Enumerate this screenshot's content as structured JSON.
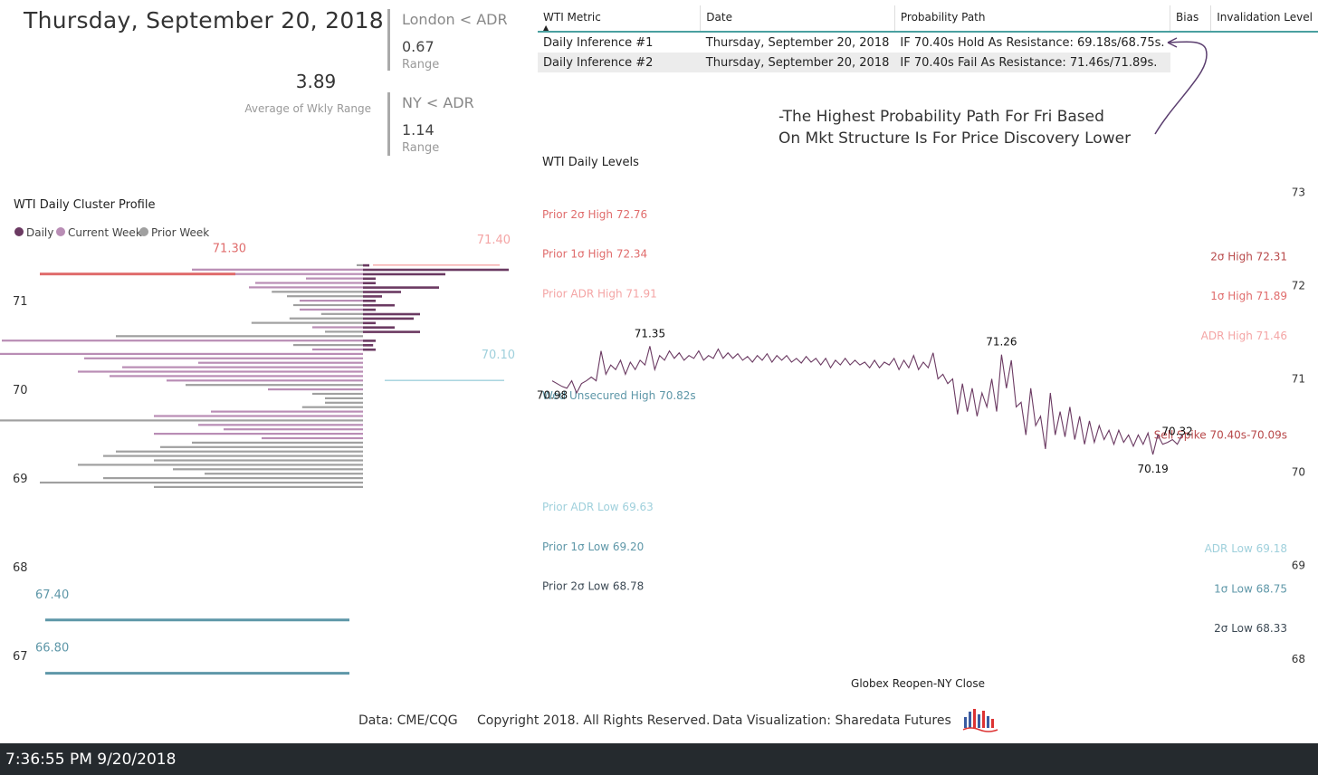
{
  "header": {
    "date_title": "Thursday, September 20, 2018",
    "avg_value": "3.89",
    "avg_label": "Average of Wkly Range"
  },
  "cards": [
    {
      "title": "London < ADR",
      "value": "0.67",
      "sub": "Range"
    },
    {
      "title": "NY < ADR",
      "value": "1.14",
      "sub": "Range"
    }
  ],
  "table": {
    "columns": [
      "WTI Metric",
      "Date",
      "Probability Path",
      "Bias",
      "Invalidation Level"
    ],
    "rows": [
      [
        "Daily Inference #1",
        "Thursday, September 20, 2018",
        "IF 70.40s Hold As Resistance: 69.18s/68.75s.",
        "",
        ""
      ],
      [
        "Daily Inference #2",
        "Thursday, September 20, 2018",
        "IF 70.40s Fail As Resistance: 71.46s/71.89s.",
        "",
        ""
      ]
    ]
  },
  "annotation": {
    "line1": "-The Highest Probability Path For Fri Based",
    "line2": "On Mkt Structure Is For Price Discovery Lower"
  },
  "colors": {
    "daily": "#6b3a62",
    "current_week": "#b98db5",
    "prior_week": "#a0a0a0",
    "red": "#e06c6c",
    "light_red": "#f4a5a5",
    "teal": "#5e97a8",
    "light_teal": "#9fd0dc",
    "dark_slate": "#3d4a55",
    "dark_red": "#b8494a",
    "line": "#6b3a62",
    "status_bar": "#252a2e"
  },
  "chart_data": [
    {
      "type": "bar",
      "title": "WTI Daily Cluster Profile",
      "orientation": "horizontal-profile",
      "legend": {
        "placement": "top-left",
        "items": [
          "Daily",
          "Current Week",
          "Prior Week"
        ]
      },
      "y_ticks": [
        "71",
        "70",
        "69",
        "68",
        "67"
      ],
      "ylim": [
        66.7,
        71.5
      ],
      "price_step": 0.05,
      "price_start": 71.4,
      "left_profile": [
        0.005,
        0.135,
        0.118,
        0.045,
        0.085,
        0.09,
        0.072,
        0.06,
        0.05,
        0.055,
        0.05,
        0.033,
        0.058,
        0.088,
        0.04,
        0.03,
        0.195,
        0.285,
        0.055,
        0.04,
        0.3,
        0.22,
        0.13,
        0.19,
        0.225,
        0.2,
        0.155,
        0.14,
        0.075,
        0.04,
        0.03,
        0.03,
        0.048,
        0.12,
        0.165,
        0.295,
        0.13,
        0.11,
        0.165,
        0.08,
        0.135,
        0.16,
        0.195,
        0.205,
        0.165,
        0.225,
        0.15,
        0.125,
        0.205,
        0.255,
        0.165
      ],
      "left_series": [
        "prior",
        "current",
        "current",
        "current",
        "current",
        "current",
        "prior",
        "prior",
        "current",
        "prior",
        "current",
        "prior",
        "prior",
        "prior",
        "current",
        "prior",
        "prior",
        "current",
        "prior",
        "current",
        "current",
        "current",
        "current",
        "current",
        "current",
        "current",
        "current",
        "prior",
        "current",
        "prior",
        "prior",
        "prior",
        "prior",
        "current",
        "current",
        "prior",
        "current",
        "current",
        "current",
        "current",
        "prior",
        "prior",
        "prior",
        "prior",
        "prior",
        "prior",
        "prior",
        "prior",
        "prior",
        "prior",
        "prior"
      ],
      "right_profile": [
        0.005,
        0.115,
        0.065,
        0.01,
        0.01,
        0.06,
        0.03,
        0.015,
        0.01,
        0.025,
        0.01,
        0.045,
        0.04,
        0.01,
        0.025,
        0.045,
        0.0,
        0.01,
        0.008,
        0.01,
        0.0,
        0.0,
        0.0,
        0.0,
        0.0,
        0.0,
        0.0,
        0.0,
        0.0,
        0.0,
        0.0,
        0.0,
        0.0,
        0.0,
        0.0,
        0.0,
        0.0,
        0.0,
        0.0,
        0.0,
        0.0,
        0.0,
        0.0,
        0.0,
        0.0,
        0.0,
        0.0,
        0.0,
        0.0,
        0.0,
        0.0
      ],
      "levels": [
        {
          "label": "71.30",
          "value": 71.3,
          "color": "red",
          "side": "left"
        },
        {
          "label": "71.40",
          "value": 71.4,
          "color": "light_red",
          "side": "right"
        },
        {
          "label": "70.10",
          "value": 70.1,
          "color": "light_teal",
          "side": "right"
        },
        {
          "label": "67.40",
          "value": 67.4,
          "color": "teal",
          "side": "left"
        },
        {
          "label": "66.80",
          "value": 66.8,
          "color": "teal",
          "side": "left"
        }
      ]
    },
    {
      "type": "line",
      "title": "WTI Daily Levels",
      "xlabel": "Globex Reopen-NY Close",
      "ylabel": "",
      "ylim": [
        67.95,
        73.1
      ],
      "y_ticks": [
        73,
        72,
        71,
        70,
        69,
        68
      ],
      "series": [
        {
          "values": [
            70.98,
            70.95,
            70.92,
            70.9,
            70.98,
            70.85,
            70.95,
            70.98,
            71.02,
            70.98,
            71.3,
            71.05,
            71.15,
            71.1,
            71.2,
            71.05,
            71.18,
            71.1,
            71.2,
            71.15,
            71.35,
            71.1,
            71.25,
            71.2,
            71.3,
            71.22,
            71.28,
            71.2,
            71.25,
            71.22,
            71.3,
            71.2,
            71.25,
            71.22,
            71.32,
            71.22,
            71.28,
            71.22,
            71.27,
            71.2,
            71.24,
            71.18,
            71.25,
            71.2,
            71.27,
            71.18,
            71.25,
            71.2,
            71.25,
            71.18,
            71.22,
            71.17,
            71.24,
            71.18,
            71.22,
            71.15,
            71.22,
            71.12,
            71.2,
            71.15,
            71.22,
            71.15,
            71.2,
            71.15,
            71.18,
            71.12,
            71.2,
            71.12,
            71.18,
            71.15,
            71.22,
            71.1,
            71.2,
            71.12,
            71.25,
            71.1,
            71.18,
            71.12,
            71.28,
            71.0,
            71.05,
            70.95,
            71.0,
            70.62,
            70.95,
            70.65,
            70.9,
            70.6,
            70.85,
            70.7,
            71.0,
            70.65,
            71.26,
            70.9,
            71.2,
            70.7,
            70.75,
            70.4,
            70.9,
            70.5,
            70.6,
            70.25,
            70.85,
            70.4,
            70.65,
            70.38,
            70.7,
            70.35,
            70.6,
            70.3,
            70.55,
            70.32,
            70.5,
            70.35,
            70.45,
            70.3,
            70.45,
            70.32,
            70.4,
            70.28,
            70.4,
            70.3,
            70.42,
            70.19,
            70.4,
            70.3,
            70.32,
            70.35,
            70.3,
            70.4
          ]
        }
      ],
      "point_labels": [
        {
          "label": "70.98",
          "index": 0
        },
        {
          "label": "71.35",
          "index": 20
        },
        {
          "label": "71.26",
          "index": 92
        },
        {
          "label": "70.19",
          "index": 123
        },
        {
          "label": "70.32",
          "index": 128
        }
      ],
      "left_levels": [
        {
          "label": "Prior 2σ High 72.76",
          "value": 72.76,
          "color": "red"
        },
        {
          "label": "Prior 1σ High 72.34",
          "value": 72.34,
          "color": "red"
        },
        {
          "label": "Prior ADR High 71.91",
          "value": 71.91,
          "color": "light_red"
        },
        {
          "label": "Wed Unsecured High 70.82s",
          "value": 70.82,
          "color": "teal"
        },
        {
          "label": "Prior ADR Low 69.63",
          "value": 69.63,
          "color": "light_teal"
        },
        {
          "label": "Prior 1σ Low 69.20",
          "value": 69.2,
          "color": "teal"
        },
        {
          "label": "Prior 2σ Low 68.78",
          "value": 68.78,
          "color": "dark_slate"
        }
      ],
      "right_levels": [
        {
          "label": "2σ High 72.31",
          "value": 72.31,
          "color": "dark_red"
        },
        {
          "label": "1σ High 71.89",
          "value": 71.89,
          "color": "red"
        },
        {
          "label": "ADR High 71.46",
          "value": 71.46,
          "color": "light_red"
        },
        {
          "label": "Sell Spike 70.40s-70.09s",
          "value": 70.4,
          "color": "dark_red"
        },
        {
          "label": "ADR Low 69.18",
          "value": 69.18,
          "color": "light_teal"
        },
        {
          "label": "1σ Low 68.75",
          "value": 68.75,
          "color": "teal"
        },
        {
          "label": "2σ Low 68.33",
          "value": 68.33,
          "color": "dark_slate"
        }
      ]
    }
  ],
  "footer": {
    "source": "Data: CME/CQG",
    "copyright": "Copyright 2018. All Rights Reserved.",
    "credit": "Data Visualization: Sharedata Futures",
    "logo_icon": "sharedata-logo-icon"
  },
  "status": {
    "time": "7:36:55 PM 9/20/2018"
  }
}
